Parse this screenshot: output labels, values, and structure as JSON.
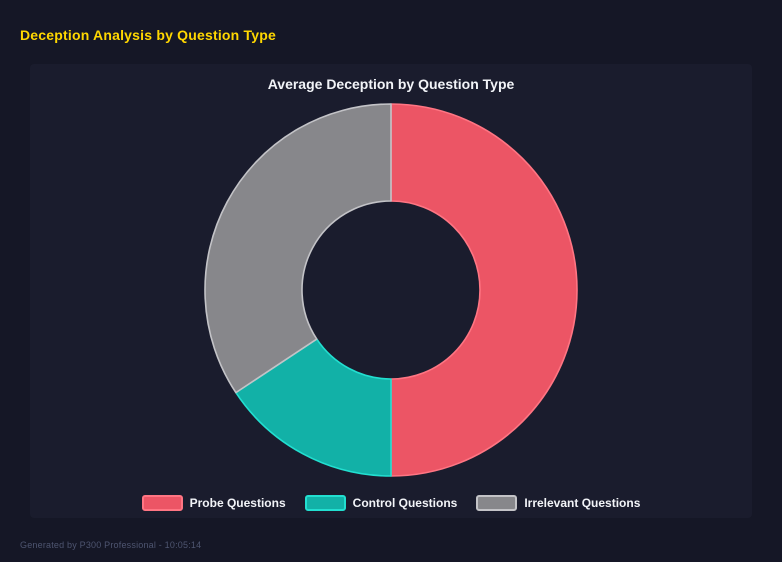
{
  "page": {
    "title": "Deception Analysis by Question Type",
    "footer": "Generated by P300 Professional - 10:05:14"
  },
  "colors": {
    "page_background": "#151726",
    "panel_background": "#1A1C2D",
    "header_text": "#FFD700",
    "chart_title_text": "#F2F4F8",
    "legend_text": "#F2F4F8",
    "footer_text": "#4E5570"
  },
  "chart_data": {
    "type": "pie",
    "subtype": "donut",
    "title": "Average Deception by Question Type",
    "categories": [
      "Probe Questions",
      "Control Questions",
      "Irrelevant Questions"
    ],
    "values_percent": [
      50.0,
      15.7,
      34.3
    ],
    "colors": [
      "#EC5565",
      "#12B1A7",
      "#87878B"
    ],
    "border_colors": [
      "#FF7583",
      "#22DFD0",
      "#C3C3C7"
    ],
    "start_angle_deg": 0,
    "direction": "clockwise",
    "inner_radius_ratio": 0.48,
    "legend_position": "bottom"
  }
}
